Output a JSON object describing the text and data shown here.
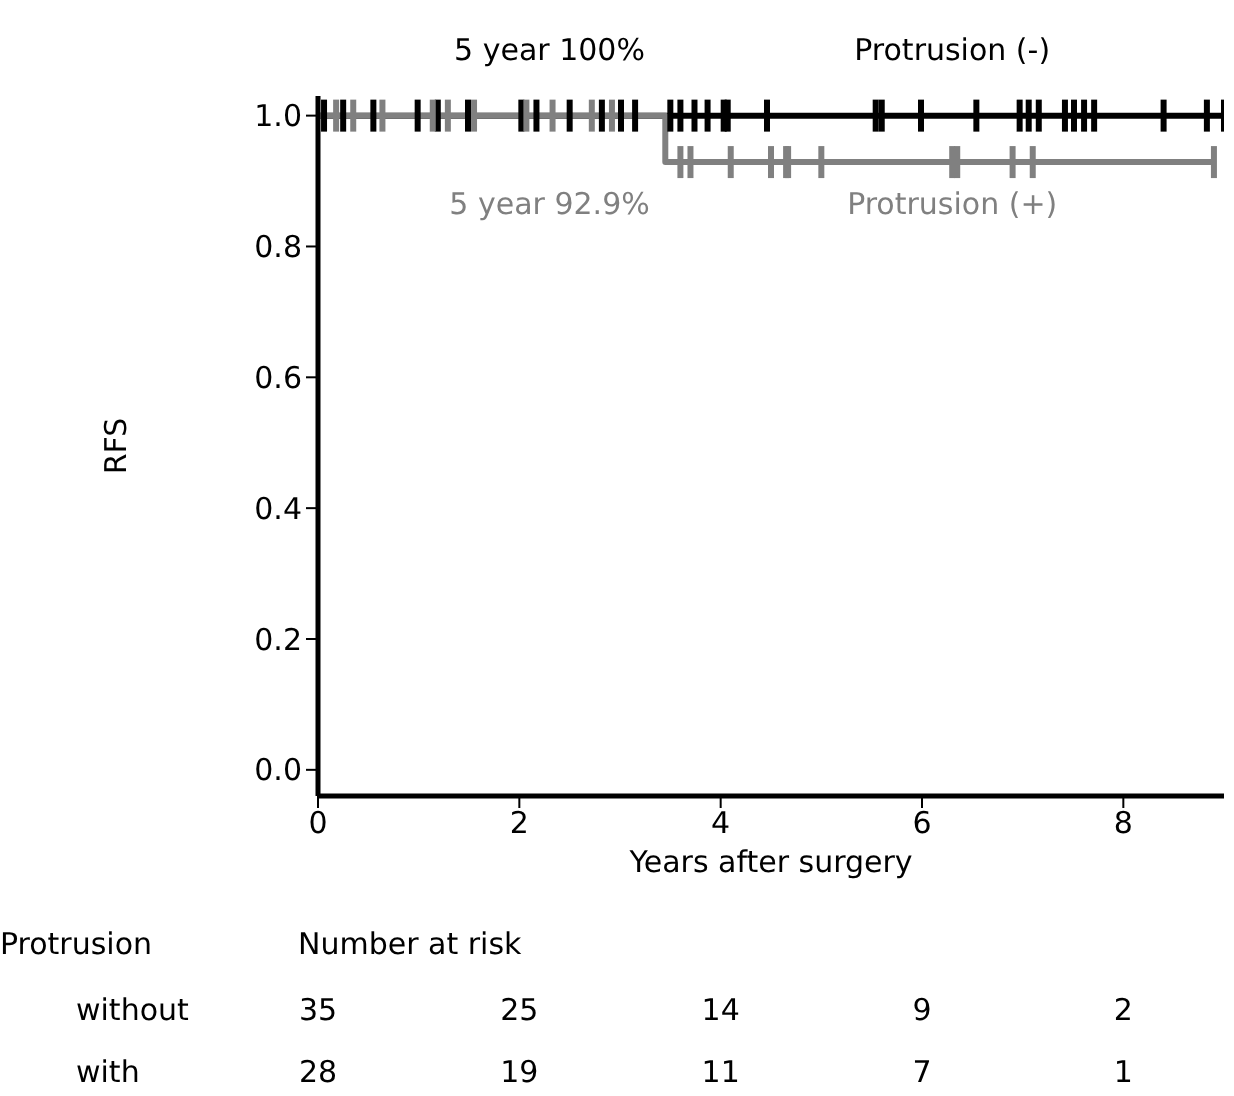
{
  "chart_data": {
    "type": "step",
    "xlabel": "Years after surgery",
    "ylabel": "RFS",
    "xlim": [
      0,
      9
    ],
    "xticks": [
      0,
      2,
      4,
      6,
      8
    ],
    "ylim": [
      -0.04,
      1.03
    ],
    "yticks": [
      {
        "value": 0,
        "label": "0.0"
      },
      0.2,
      0.4,
      0.6,
      0.8,
      {
        "value": 1,
        "label": "1.0"
      }
    ],
    "series": [
      {
        "name": "Protrusion (-)",
        "color": "#000000",
        "x": [
          0,
          0.06,
          0.25,
          0.55,
          0.99,
          1.19,
          1.49,
          2.02,
          2.17,
          2.5,
          2.82,
          3.01,
          3.15,
          3.5,
          3.6,
          3.74,
          3.87,
          4.03,
          4.07,
          4.46,
          5.54,
          5.6,
          5.99,
          6.54,
          6.97,
          7.06,
          7.16,
          7.42,
          7.51,
          7.61,
          7.71,
          8.4,
          8.83,
          9
        ],
        "values": [
          1,
          1,
          1,
          1,
          1,
          1,
          1,
          1,
          1,
          1,
          1,
          1,
          1,
          1,
          1,
          1,
          1,
          1,
          1,
          1,
          1,
          1,
          1,
          1,
          1,
          1,
          1,
          1,
          1,
          1,
          1,
          1,
          1,
          1
        ]
      },
      {
        "name": "Protrusion (+)",
        "color": "#808080",
        "x": [
          0,
          0.18,
          0.35,
          0.64,
          1.14,
          1.29,
          1.55,
          2.07,
          2.33,
          2.72,
          2.92,
          3.45,
          3.6,
          3.7,
          4.1,
          4.5,
          4.65,
          4.67,
          5.0,
          6.3,
          6.35,
          6.9,
          7.1,
          8.9
        ],
        "values": [
          1,
          1,
          1,
          1,
          1,
          1,
          1,
          1,
          1,
          1,
          1,
          0.929,
          0.929,
          0.929,
          0.929,
          0.929,
          0.929,
          0.929,
          0.929,
          0.929,
          0.929,
          0.929,
          0.929,
          0.929
        ]
      }
    ],
    "annotations": [
      "5 year 100%",
      "5 year 92.9%",
      "Protrusion",
      "Number at risk",
      "without",
      "35",
      "25",
      "14",
      "9",
      "2",
      "with",
      "28",
      "19",
      "11",
      "7",
      "1"
    ]
  }
}
